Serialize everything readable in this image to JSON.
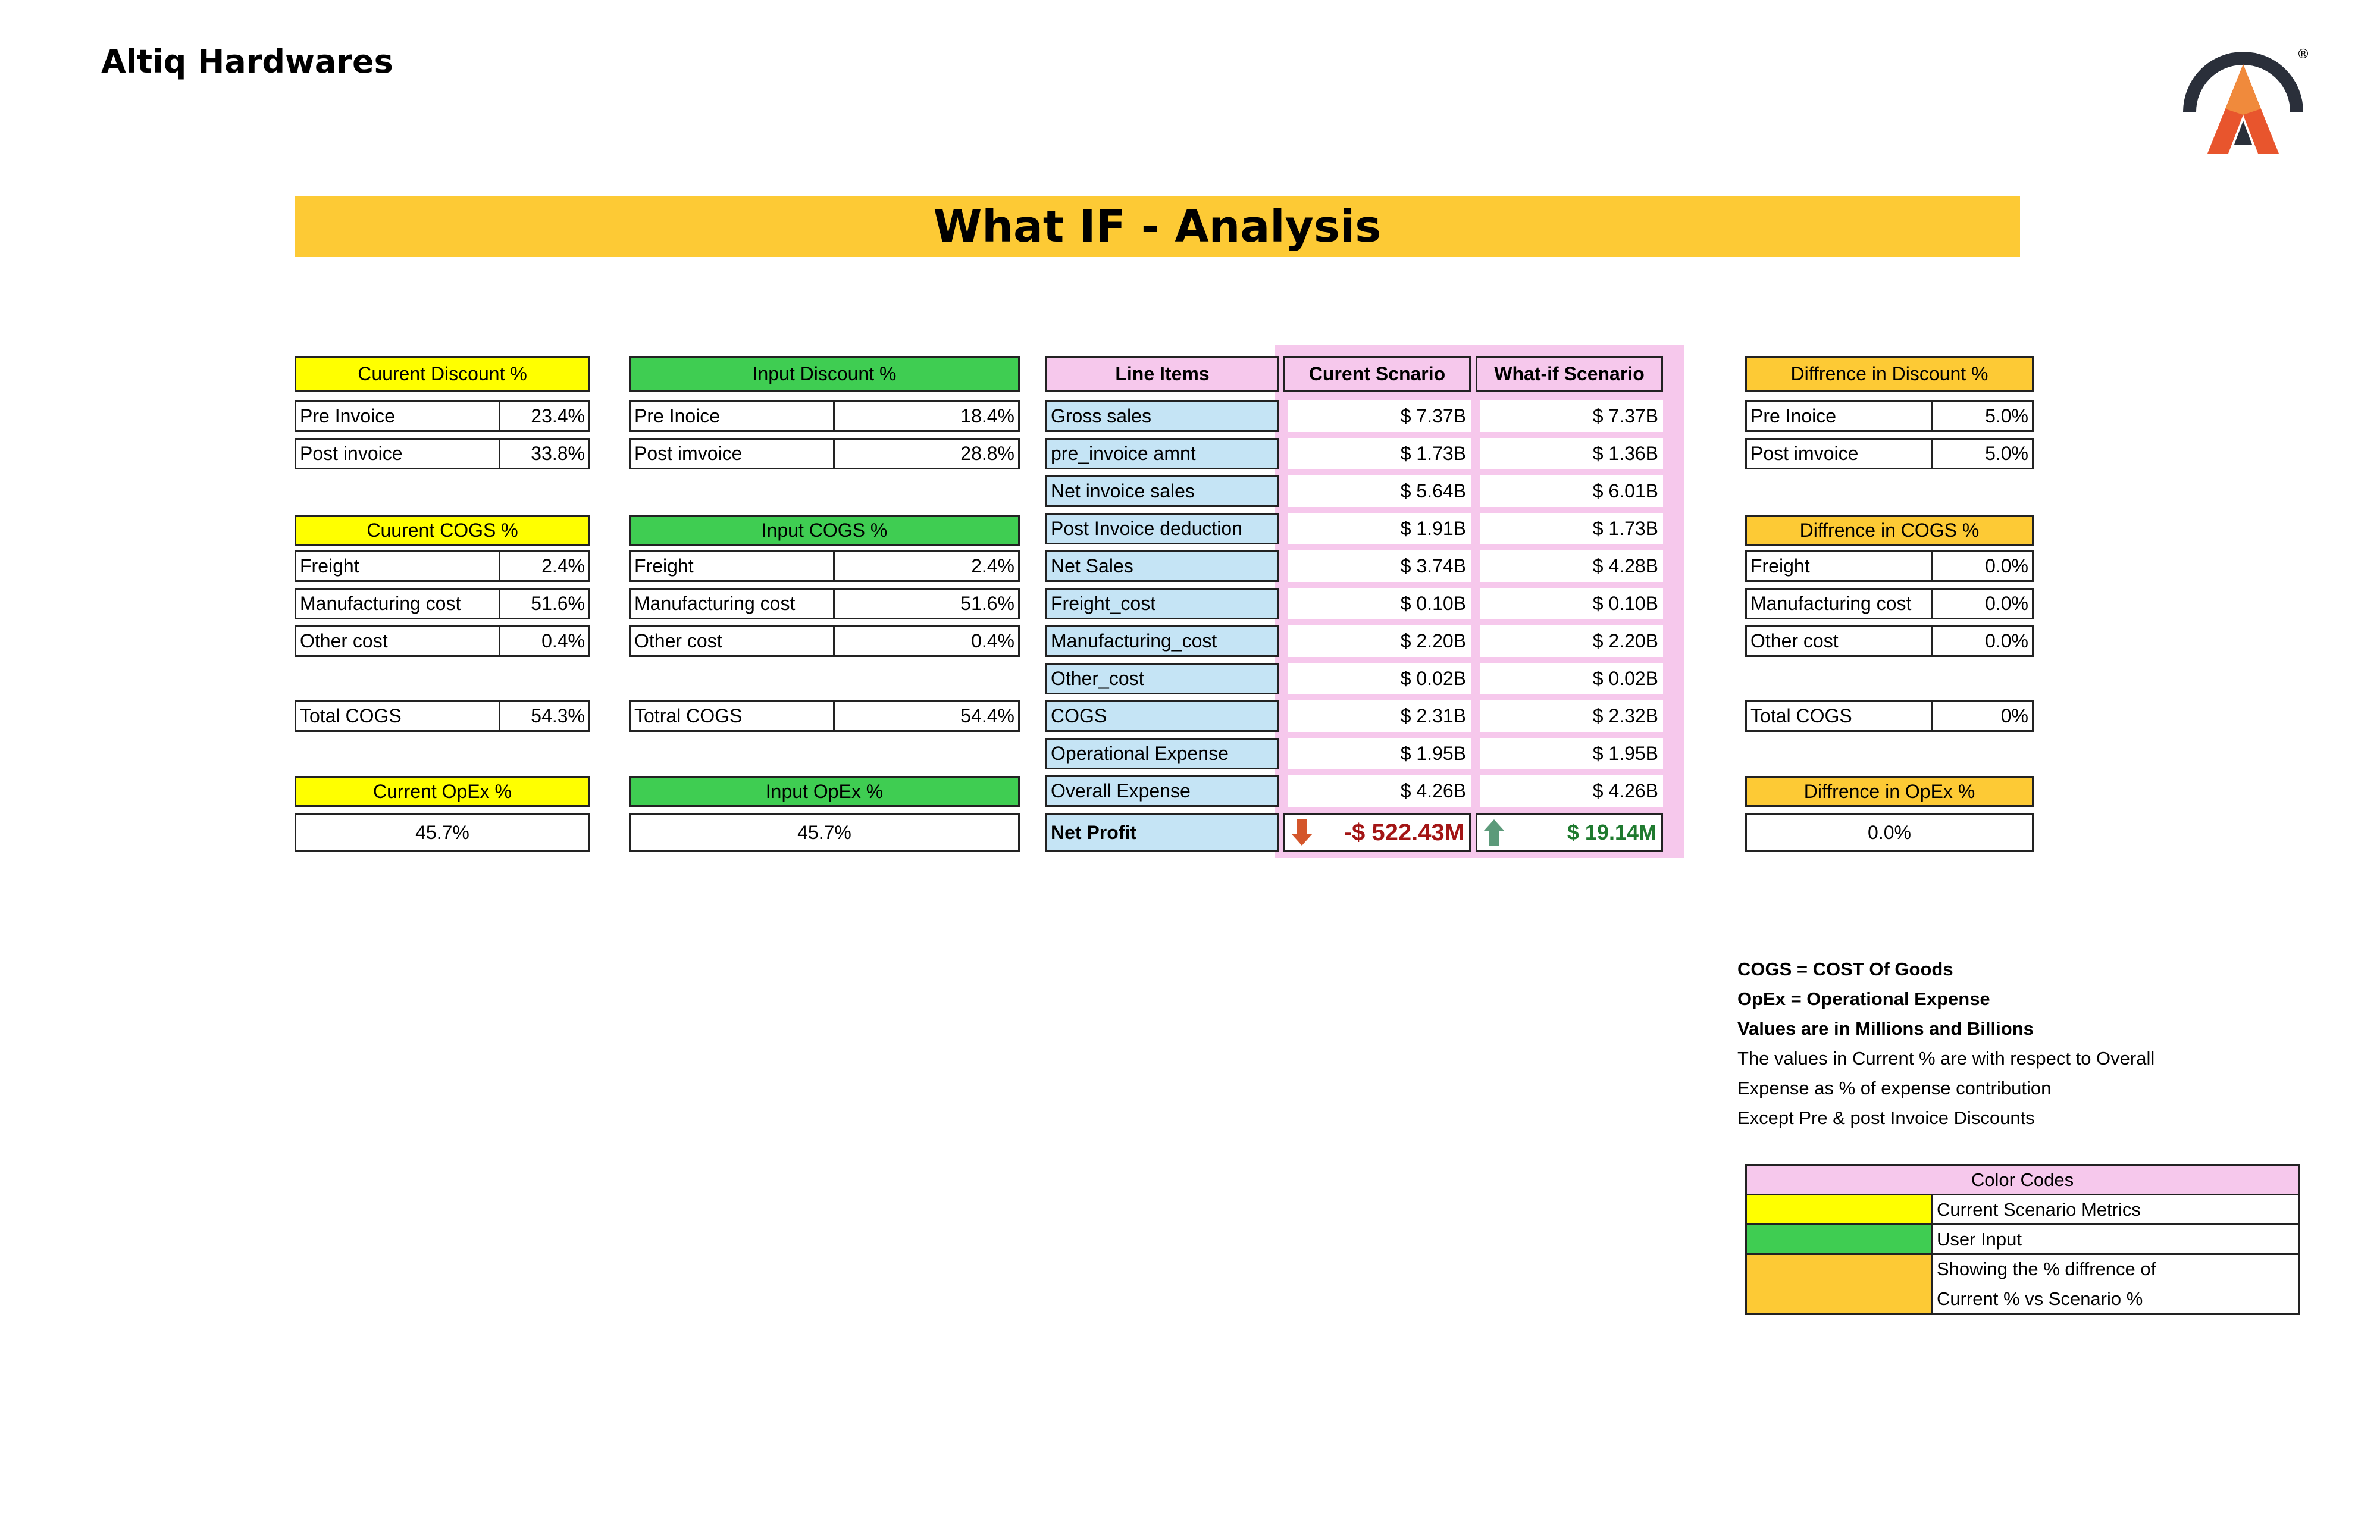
{
  "header": {
    "brand": "Altiq Hardwares",
    "title": "What IF - Analysis"
  },
  "current": {
    "discount_header": "Cuurent Discount %",
    "pre_label": "Pre Invoice",
    "pre_value": "23.4%",
    "post_label": "Post invoice",
    "post_value": "33.8%",
    "cogs_header": "Cuurent COGS %",
    "freight_label": "Freight",
    "freight_value": "2.4%",
    "mfg_label": "Manufacturing cost",
    "mfg_value": "51.6%",
    "other_label": "Other cost",
    "other_value": "0.4%",
    "total_label": "Total COGS",
    "total_value": "54.3%",
    "opex_header": "Current OpEx %",
    "opex_value": "45.7%"
  },
  "input": {
    "discount_header": "Input  Discount %",
    "pre_label": "Pre Inoice",
    "pre_value": "18.4%",
    "post_label": "Post imvoice",
    "post_value": "28.8%",
    "cogs_header": "Input  COGS %",
    "freight_label": "Freight",
    "freight_value": "2.4%",
    "mfg_label": "Manufacturing cost",
    "mfg_value": "51.6%",
    "other_label": "Other cost",
    "other_value": "0.4%",
    "total_label": "Totral COGS",
    "total_value": "54.4%",
    "opex_header": "Input  OpEx %",
    "opex_value": "45.7%"
  },
  "scenario": {
    "line_items_header": "Line Items",
    "current_header": "Curent Scnario",
    "whatif_header": "What-if Scenario",
    "rows": [
      {
        "label": "Gross sales",
        "current": "$ 7.37B",
        "whatif": "$ 7.37B"
      },
      {
        "label": "pre_invoice amnt",
        "current": "$ 1.73B",
        "whatif": "$ 1.36B"
      },
      {
        "label": "Net invoice sales",
        "current": "$ 5.64B",
        "whatif": "$ 6.01B"
      },
      {
        "label": "Post Invoice deduction",
        "current": "$ 1.91B",
        "whatif": "$ 1.73B"
      },
      {
        "label": "Net Sales",
        "current": "$ 3.74B",
        "whatif": "$ 4.28B"
      },
      {
        "label": "Freight_cost",
        "current": "$ 0.10B",
        "whatif": "$ 0.10B"
      },
      {
        "label": "Manufacturing_cost",
        "current": "$ 2.20B",
        "whatif": "$ 2.20B"
      },
      {
        "label": "Other_cost",
        "current": "$ 0.02B",
        "whatif": "$ 0.02B"
      },
      {
        "label": "COGS",
        "current": "$ 2.31B",
        "whatif": "$ 2.32B"
      },
      {
        "label": "Operational Expense",
        "current": "$ 1.95B",
        "whatif": "$ 1.95B"
      },
      {
        "label": "Overall Expense",
        "current": "$ 4.26B",
        "whatif": "$ 4.26B"
      }
    ],
    "net_profit_label": "Net Profit",
    "net_profit_current": "-$ 522.43M",
    "net_profit_whatif": "$ 19.14M",
    "negative_color": "#a31515",
    "positive_color": "#1e7a2e"
  },
  "difference": {
    "discount_header": "Diffrence in  Discount %",
    "pre_label": "Pre Inoice",
    "pre_value": "5.0%",
    "post_label": "Post imvoice",
    "post_value": "5.0%",
    "cogs_header": "Diffrence in COGS %",
    "freight_label": "Freight",
    "freight_value": "0.0%",
    "mfg_label": "Manufacturing cost",
    "mfg_value": "0.0%",
    "other_label": "Other cost",
    "other_value": "0.0%",
    "total_label": "Total COGS",
    "total_value": "0%",
    "opex_header": "Diffrence in OpEx %",
    "opex_value": "0.0%"
  },
  "notes": {
    "line1": "COGS = COST Of Goods",
    "line2": "OpEx = Operational Expense",
    "line3": "Values are in Millions and Billions",
    "line4": "The values in Current % are with respect to Overall",
    "line5": "Expense  as % of expense contribution",
    "line6": "Except Pre & post Invoice Discounts"
  },
  "color_codes": {
    "header": "Color Codes",
    "current_label": "Current Scenario Metrics",
    "input_label": "User Input",
    "diff_label_1": "Showing the % diffrence of",
    "diff_label_2": "Current % vs Scenario %"
  },
  "colors": {
    "yellow": "#ffff00",
    "green": "#3fcd52",
    "orange": "#fdca35",
    "pink": "#f6c8ec",
    "blue": "#c5e4f5"
  },
  "icons": {
    "down": "arrow-down-icon",
    "up": "arrow-up-icon",
    "logo": "altiq-logo-icon"
  }
}
